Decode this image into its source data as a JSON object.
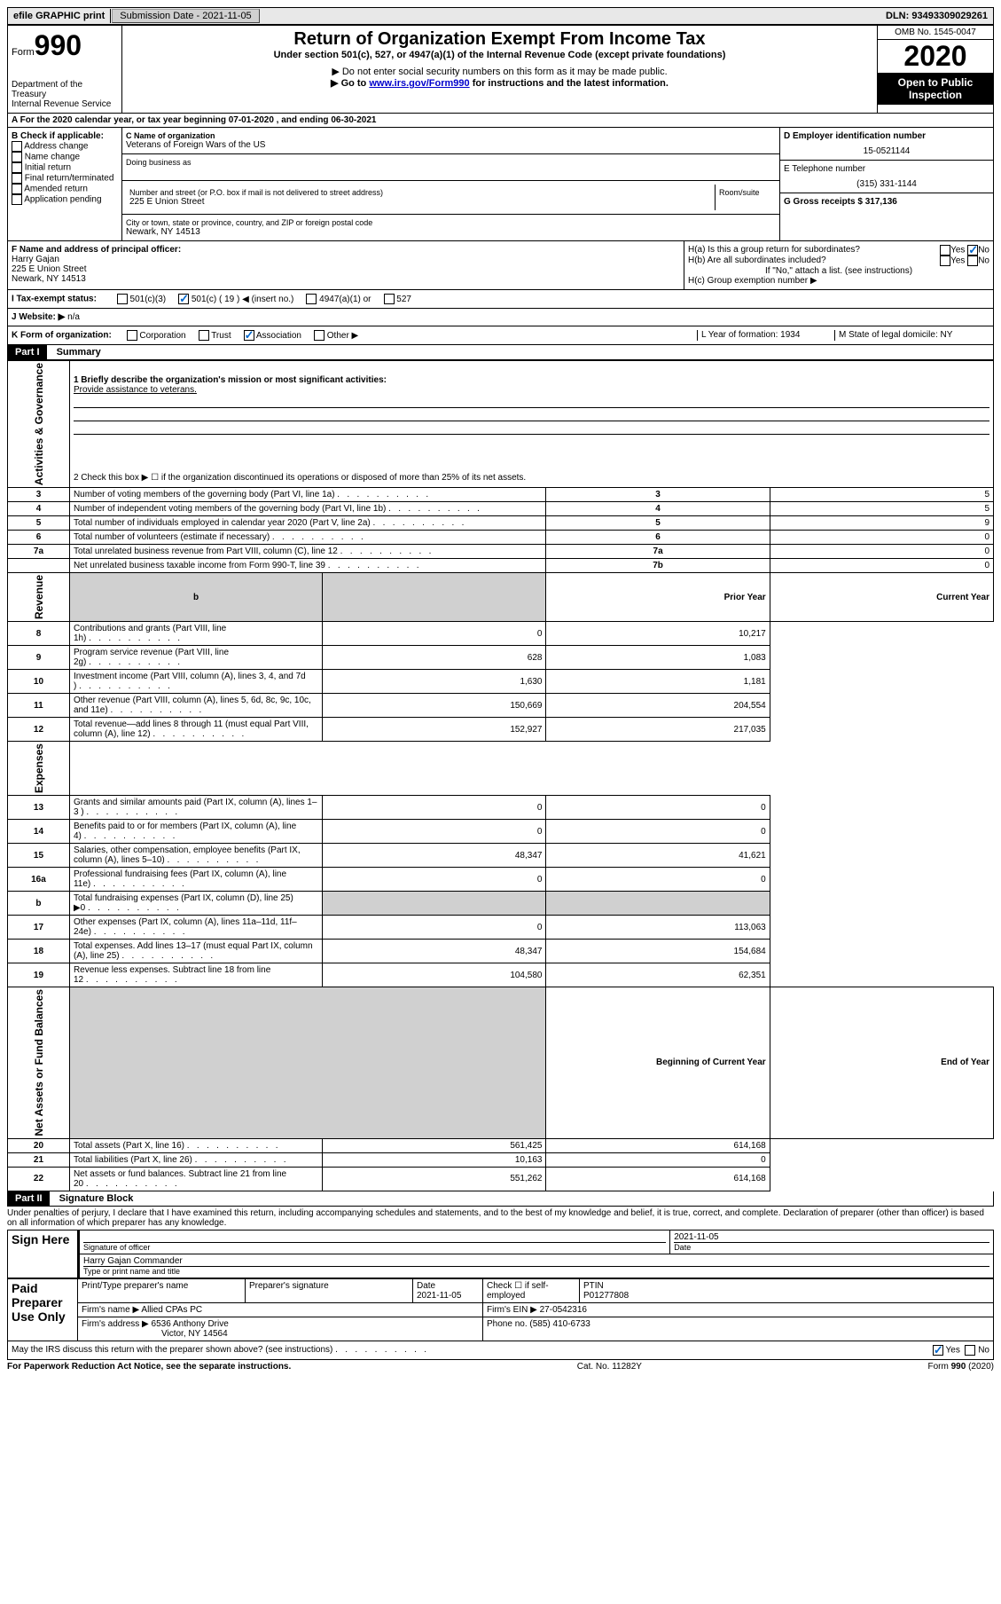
{
  "colors": {
    "link": "#0000cc",
    "check": "#0066cc",
    "header_bg": "#000000",
    "header_fg": "#ffffff",
    "gray_bg": "#d0d0d0",
    "topbar_bg": "#e8e8e8"
  },
  "top_bar": {
    "efile": "efile GRAPHIC print",
    "submission_label": "Submission Date - 2021-11-05",
    "dln": "DLN: 93493309029261"
  },
  "header": {
    "form_label": "Form",
    "form_number": "990",
    "dept": "Department of the Treasury",
    "irs": "Internal Revenue Service",
    "title": "Return of Organization Exempt From Income Tax",
    "subtitle": "Under section 501(c), 527, or 4947(a)(1) of the Internal Revenue Code (except private foundations)",
    "note1": "▶ Do not enter social security numbers on this form as it may be made public.",
    "note2_pre": "▶ Go to ",
    "note2_link": "www.irs.gov/Form990",
    "note2_post": " for instructions and the latest information.",
    "omb": "OMB No. 1545-0047",
    "year": "2020",
    "inspection": "Open to Public Inspection"
  },
  "row_A": "A For the 2020 calendar year, or tax year beginning 07-01-2020   , and ending 06-30-2021",
  "section_B": {
    "label": "B Check if applicable:",
    "items": [
      "Address change",
      "Name change",
      "Initial return",
      "Final return/terminated",
      "Amended return",
      "Application pending"
    ]
  },
  "section_C": {
    "name_label": "C Name of organization",
    "name": "Veterans of Foreign Wars of the US",
    "dba_label": "Doing business as",
    "street_label": "Number and street (or P.O. box if mail is not delivered to street address)",
    "room_label": "Room/suite",
    "street": "225 E Union Street",
    "city_label": "City or town, state or province, country, and ZIP or foreign postal code",
    "city": "Newark, NY 14513"
  },
  "section_D": {
    "label": "D Employer identification number",
    "value": "15-0521144"
  },
  "section_E": {
    "label": "E Telephone number",
    "value": "(315) 331-1144"
  },
  "section_G": {
    "label": "G Gross receipts $ 317,136"
  },
  "section_F": {
    "label": "F  Name and address of principal officer:",
    "name": "Harry Gajan",
    "street": "225 E Union Street",
    "city": "Newark, NY  14513"
  },
  "section_H": {
    "a": "H(a)  Is this a group return for subordinates?",
    "b": "H(b)  Are all subordinates included?",
    "b_note": "If \"No,\" attach a list. (see instructions)",
    "c": "H(c)  Group exemption number ▶",
    "yes": "Yes",
    "no": "No"
  },
  "row_I": {
    "label": "I  Tax-exempt status:",
    "opts": [
      "501(c)(3)",
      "501(c) ( 19 ) ◀ (insert no.)",
      "4947(a)(1) or",
      "527"
    ]
  },
  "row_J": {
    "label": "J  Website: ▶",
    "value": "n/a"
  },
  "row_K": {
    "label": "K Form of organization:",
    "opts": [
      "Corporation",
      "Trust",
      "Association",
      "Other ▶"
    ],
    "L_label": "L Year of formation: 1934",
    "M_label": "M State of legal domicile: NY"
  },
  "part1": {
    "header": "Part I",
    "title": "Summary",
    "line1_label": "1  Briefly describe the organization's mission or most significant activities:",
    "line1_value": "Provide assistance to veterans.",
    "line2": "2   Check this box ▶ ☐  if the organization discontinued its operations or disposed of more than 25% of its net assets.",
    "header_prior": "Prior Year",
    "header_current": "Current Year",
    "header_begin": "Beginning of Current Year",
    "header_end": "End of Year",
    "sections": {
      "governance": "Activities & Governance",
      "revenue": "Revenue",
      "expenses": "Expenses",
      "net": "Net Assets or Fund Balances"
    },
    "simple_rows": [
      {
        "n": "3",
        "t": "Number of voting members of the governing body (Part VI, line 1a)",
        "l": "3",
        "v": "5"
      },
      {
        "n": "4",
        "t": "Number of independent voting members of the governing body (Part VI, line 1b)",
        "l": "4",
        "v": "5"
      },
      {
        "n": "5",
        "t": "Total number of individuals employed in calendar year 2020 (Part V, line 2a)",
        "l": "5",
        "v": "9"
      },
      {
        "n": "6",
        "t": "Total number of volunteers (estimate if necessary)",
        "l": "6",
        "v": "0"
      },
      {
        "n": "7a",
        "t": "Total unrelated business revenue from Part VIII, column (C), line 12",
        "l": "7a",
        "v": "0"
      },
      {
        "n": "",
        "t": "Net unrelated business taxable income from Form 990-T, line 39",
        "l": "7b",
        "v": "0"
      }
    ],
    "revenue_rows": [
      {
        "n": "8",
        "t": "Contributions and grants (Part VIII, line 1h)",
        "p": "0",
        "c": "10,217"
      },
      {
        "n": "9",
        "t": "Program service revenue (Part VIII, line 2g)",
        "p": "628",
        "c": "1,083"
      },
      {
        "n": "10",
        "t": "Investment income (Part VIII, column (A), lines 3, 4, and 7d )",
        "p": "1,630",
        "c": "1,181"
      },
      {
        "n": "11",
        "t": "Other revenue (Part VIII, column (A), lines 5, 6d, 8c, 9c, 10c, and 11e)",
        "p": "150,669",
        "c": "204,554"
      },
      {
        "n": "12",
        "t": "Total revenue—add lines 8 through 11 (must equal Part VIII, column (A), line 12)",
        "p": "152,927",
        "c": "217,035"
      }
    ],
    "expense_rows": [
      {
        "n": "13",
        "t": "Grants and similar amounts paid (Part IX, column (A), lines 1–3 )",
        "p": "0",
        "c": "0"
      },
      {
        "n": "14",
        "t": "Benefits paid to or for members (Part IX, column (A), line 4)",
        "p": "0",
        "c": "0"
      },
      {
        "n": "15",
        "t": "Salaries, other compensation, employee benefits (Part IX, column (A), lines 5–10)",
        "p": "48,347",
        "c": "41,621"
      },
      {
        "n": "16a",
        "t": "Professional fundraising fees (Part IX, column (A), line 11e)",
        "p": "0",
        "c": "0"
      },
      {
        "n": "b",
        "t": "Total fundraising expenses (Part IX, column (D), line 25) ▶0",
        "p": "GRAY",
        "c": "GRAY"
      },
      {
        "n": "17",
        "t": "Other expenses (Part IX, column (A), lines 11a–11d, 11f–24e)",
        "p": "0",
        "c": "113,063"
      },
      {
        "n": "18",
        "t": "Total expenses. Add lines 13–17 (must equal Part IX, column (A), line 25)",
        "p": "48,347",
        "c": "154,684"
      },
      {
        "n": "19",
        "t": "Revenue less expenses. Subtract line 18 from line 12",
        "p": "104,580",
        "c": "62,351"
      }
    ],
    "net_rows": [
      {
        "n": "20",
        "t": "Total assets (Part X, line 16)",
        "p": "561,425",
        "c": "614,168"
      },
      {
        "n": "21",
        "t": "Total liabilities (Part X, line 26)",
        "p": "10,163",
        "c": "0"
      },
      {
        "n": "22",
        "t": "Net assets or fund balances. Subtract line 21 from line 20",
        "p": "551,262",
        "c": "614,168"
      }
    ]
  },
  "part2": {
    "header": "Part II",
    "title": "Signature Block",
    "declaration": "Under penalties of perjury, I declare that I have examined this return, including accompanying schedules and statements, and to the best of my knowledge and belief, it is true, correct, and complete. Declaration of preparer (other than officer) is based on all information of which preparer has any knowledge.",
    "sign_here": "Sign Here",
    "sig_officer": "Signature of officer",
    "date_label": "Date",
    "date_value": "2021-11-05",
    "officer_name": "Harry Gajan  Commander",
    "type_name": "Type or print name and title",
    "paid": "Paid Preparer Use Only",
    "prep_name_label": "Print/Type preparer's name",
    "prep_sig_label": "Preparer's signature",
    "prep_date_label": "Date",
    "prep_date": "2021-11-05",
    "self_emp": "Check ☐ if self-employed",
    "ptin_label": "PTIN",
    "ptin": "P01277808",
    "firm_name_label": "Firm's name    ▶",
    "firm_name": "Allied CPAs PC",
    "firm_ein_label": "Firm's EIN ▶",
    "firm_ein": "27-0542316",
    "firm_addr_label": "Firm's address ▶",
    "firm_addr": "6536 Anthony Drive",
    "firm_city": "Victor, NY  14564",
    "firm_phone_label": "Phone no.",
    "firm_phone": "(585) 410-6733",
    "discuss": "May the IRS discuss this return with the preparer shown above? (see instructions)",
    "yes": "Yes",
    "no": "No"
  },
  "footer": {
    "paperwork": "For Paperwork Reduction Act Notice, see the separate instructions.",
    "cat": "Cat. No. 11282Y",
    "form": "Form 990 (2020)"
  }
}
